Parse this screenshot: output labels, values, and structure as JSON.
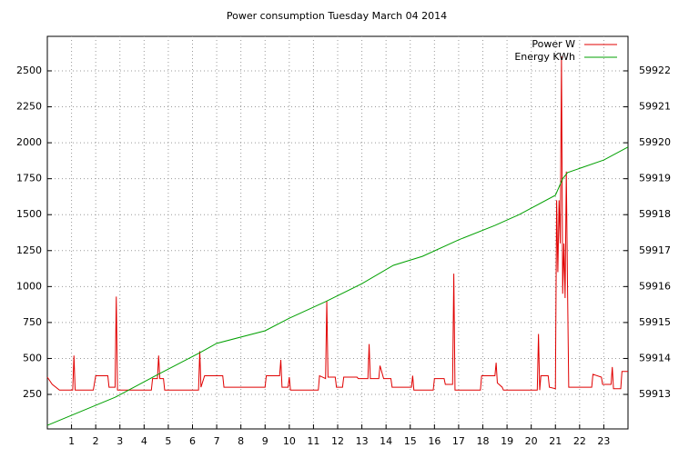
{
  "chart_data": {
    "type": "line",
    "title": "Power consumption Tuesday March 04 2014",
    "xlim": [
      0,
      24
    ],
    "xticks": [
      1,
      2,
      3,
      4,
      5,
      6,
      7,
      8,
      9,
      10,
      11,
      12,
      13,
      14,
      15,
      16,
      17,
      18,
      19,
      20,
      21,
      22,
      23
    ],
    "ylim": [
      10,
      2740
    ],
    "yticks": [
      250,
      500,
      750,
      1000,
      1250,
      1500,
      1750,
      2000,
      2250,
      2500
    ],
    "y2lim": [
      59912.04,
      59922.96
    ],
    "y2ticks": [
      59913,
      59914,
      59915,
      59916,
      59917,
      59918,
      59919,
      59920,
      59921,
      59922
    ],
    "grid": true,
    "legend": "top-right",
    "series": [
      {
        "name": "Power W",
        "color": "#e00000",
        "x": [
          0,
          0.2,
          0.5,
          1.05,
          1.1,
          1.15,
          1.9,
          2.0,
          2.5,
          2.55,
          2.8,
          2.85,
          2.9,
          4.3,
          4.35,
          4.55,
          4.6,
          4.65,
          4.8,
          4.85,
          6.25,
          6.3,
          6.35,
          6.5,
          7.25,
          7.3,
          9.0,
          9.05,
          9.6,
          9.65,
          9.7,
          9.95,
          10.0,
          10.05,
          11.2,
          11.25,
          11.5,
          11.55,
          11.6,
          11.9,
          11.95,
          12.2,
          12.25,
          12.8,
          12.85,
          13.25,
          13.3,
          13.35,
          13.7,
          13.75,
          13.9,
          14.2,
          14.25,
          15.05,
          15.1,
          15.15,
          15.95,
          16.0,
          16.4,
          16.45,
          16.75,
          16.8,
          16.85,
          17.9,
          17.95,
          18.5,
          18.55,
          18.6,
          18.8,
          18.85,
          20.25,
          20.3,
          20.35,
          20.4,
          20.7,
          20.75,
          21.0,
          21.05,
          21.1,
          21.15,
          21.2,
          21.25,
          21.3,
          21.35,
          21.4,
          21.45,
          21.5,
          21.55,
          22.5,
          22.55,
          22.9,
          22.95,
          23.3,
          23.35,
          23.4,
          23.7,
          23.75,
          24
        ],
        "values": [
          370,
          320,
          280,
          280,
          520,
          280,
          280,
          380,
          380,
          300,
          300,
          930,
          280,
          280,
          360,
          360,
          520,
          360,
          360,
          280,
          280,
          550,
          300,
          380,
          380,
          300,
          300,
          380,
          380,
          490,
          300,
          300,
          370,
          280,
          280,
          380,
          360,
          900,
          370,
          370,
          300,
          300,
          370,
          370,
          360,
          360,
          600,
          360,
          360,
          450,
          360,
          360,
          300,
          300,
          380,
          280,
          280,
          360,
          360,
          320,
          320,
          1090,
          280,
          280,
          380,
          380,
          470,
          330,
          300,
          280,
          280,
          670,
          280,
          380,
          380,
          300,
          290,
          1600,
          1100,
          1600,
          1300,
          2600,
          950,
          1300,
          920,
          1800,
          1000,
          300,
          300,
          390,
          370,
          320,
          320,
          440,
          290,
          290,
          410,
          410
        ]
      },
      {
        "name": "Energy KWh",
        "color": "#00a000",
        "axis": "y2",
        "x": [
          0,
          2.8,
          4.5,
          6.3,
          7,
          9,
          10,
          11.5,
          13,
          14.3,
          15.5,
          17,
          18.5,
          19.5,
          21,
          21.3,
          21.5,
          23,
          24
        ],
        "values": [
          59912.14,
          59912.92,
          59913.53,
          59914.16,
          59914.42,
          59914.77,
          59915.12,
          59915.58,
          59916.08,
          59916.59,
          59916.84,
          59917.3,
          59917.7,
          59918.0,
          59918.54,
          59919.0,
          59919.17,
          59919.52,
          59919.88
        ]
      }
    ]
  }
}
